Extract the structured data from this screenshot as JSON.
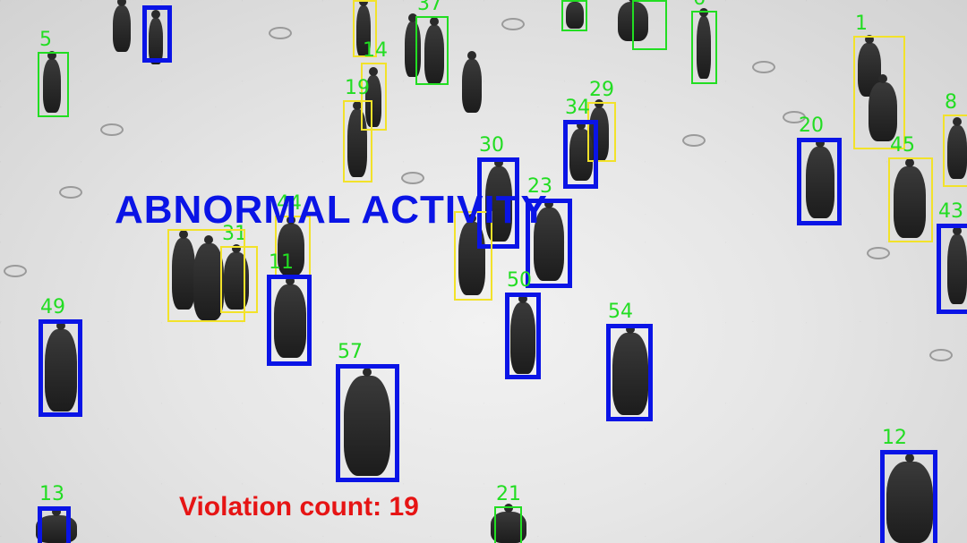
{
  "overlay": {
    "alert_text": "ABNORMAL ACTIVITY",
    "violation_label": "Violation count: ",
    "violation_count": "19"
  },
  "colors": {
    "safe": "#22dd22",
    "warning": "#f2e22a",
    "violation": "#0a14e6",
    "alert": "#0a14e6",
    "count": "#e61414"
  },
  "detections": [
    {
      "id": "5",
      "status": "safe"
    },
    {
      "id": "",
      "status": "violation"
    },
    {
      "id": "",
      "status": "warning"
    },
    {
      "id": "37",
      "status": "safe"
    },
    {
      "id": "14",
      "status": "warning"
    },
    {
      "id": "19",
      "status": "warning"
    },
    {
      "id": "",
      "status": "safe"
    },
    {
      "id": "",
      "status": "safe"
    },
    {
      "id": "6",
      "status": "safe"
    },
    {
      "id": "1",
      "status": "warning"
    },
    {
      "id": "8",
      "status": "warning"
    },
    {
      "id": "29",
      "status": "warning"
    },
    {
      "id": "34",
      "status": "violation"
    },
    {
      "id": "30",
      "status": "violation"
    },
    {
      "id": "23",
      "status": "violation"
    },
    {
      "id": "20",
      "status": "violation"
    },
    {
      "id": "45",
      "status": "warning"
    },
    {
      "id": "43",
      "status": "violation"
    },
    {
      "id": "",
      "status": "warning"
    },
    {
      "id": "31",
      "status": "warning"
    },
    {
      "id": "44",
      "status": "warning"
    },
    {
      "id": "11",
      "status": "violation"
    },
    {
      "id": "",
      "status": "warning"
    },
    {
      "id": "50",
      "status": "violation"
    },
    {
      "id": "49",
      "status": "violation"
    },
    {
      "id": "54",
      "status": "violation"
    },
    {
      "id": "57",
      "status": "violation"
    },
    {
      "id": "12",
      "status": "violation"
    },
    {
      "id": "13",
      "status": "violation"
    },
    {
      "id": "21",
      "status": "safe"
    }
  ]
}
